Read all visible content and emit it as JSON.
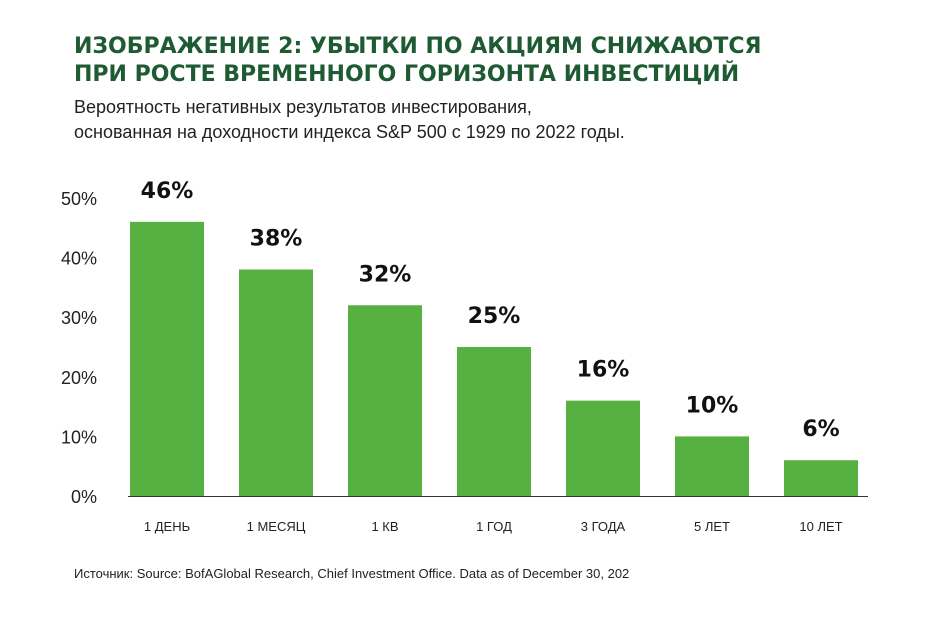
{
  "header": {
    "title_line1": "ИЗОБРАЖЕНИЕ 2: УБЫТКИ ПО АКЦИЯМ СНИЖАЮТСЯ",
    "title_line2": "ПРИ РОСТЕ ВРЕМЕННОГО ГОРИЗОНТА ИНВЕСТИЦИЙ",
    "subtitle_line1": "Вероятность негативных результатов инвестирования,",
    "subtitle_line2": "основанная на доходности индекса S&P 500 с 1929 по 2022 годы."
  },
  "footer": {
    "source": "Источник: Source: BofAGlobal Research, Chief Investment Office. Data as of December 30, 202"
  },
  "colors": {
    "bar": "#56b142",
    "title": "#1e5a32",
    "axis": "#333333"
  },
  "chart_data": {
    "type": "bar",
    "categories": [
      "1 ДЕНЬ",
      "1 МЕСЯЦ",
      "1 КВ",
      "1 ГОД",
      "3 ГОДА",
      "5 ЛЕТ",
      "10 ЛЕТ"
    ],
    "values": [
      46,
      38,
      32,
      25,
      16,
      10,
      6
    ],
    "value_labels": [
      "46%",
      "38%",
      "32%",
      "25%",
      "16%",
      "10%",
      "6%"
    ],
    "yticks": [
      0,
      10,
      20,
      30,
      40,
      50
    ],
    "ytick_labels": [
      "0%",
      "10%",
      "20%",
      "30%",
      "40%",
      "50%"
    ],
    "ylim": [
      0,
      50
    ],
    "grid": false,
    "legend": false
  }
}
